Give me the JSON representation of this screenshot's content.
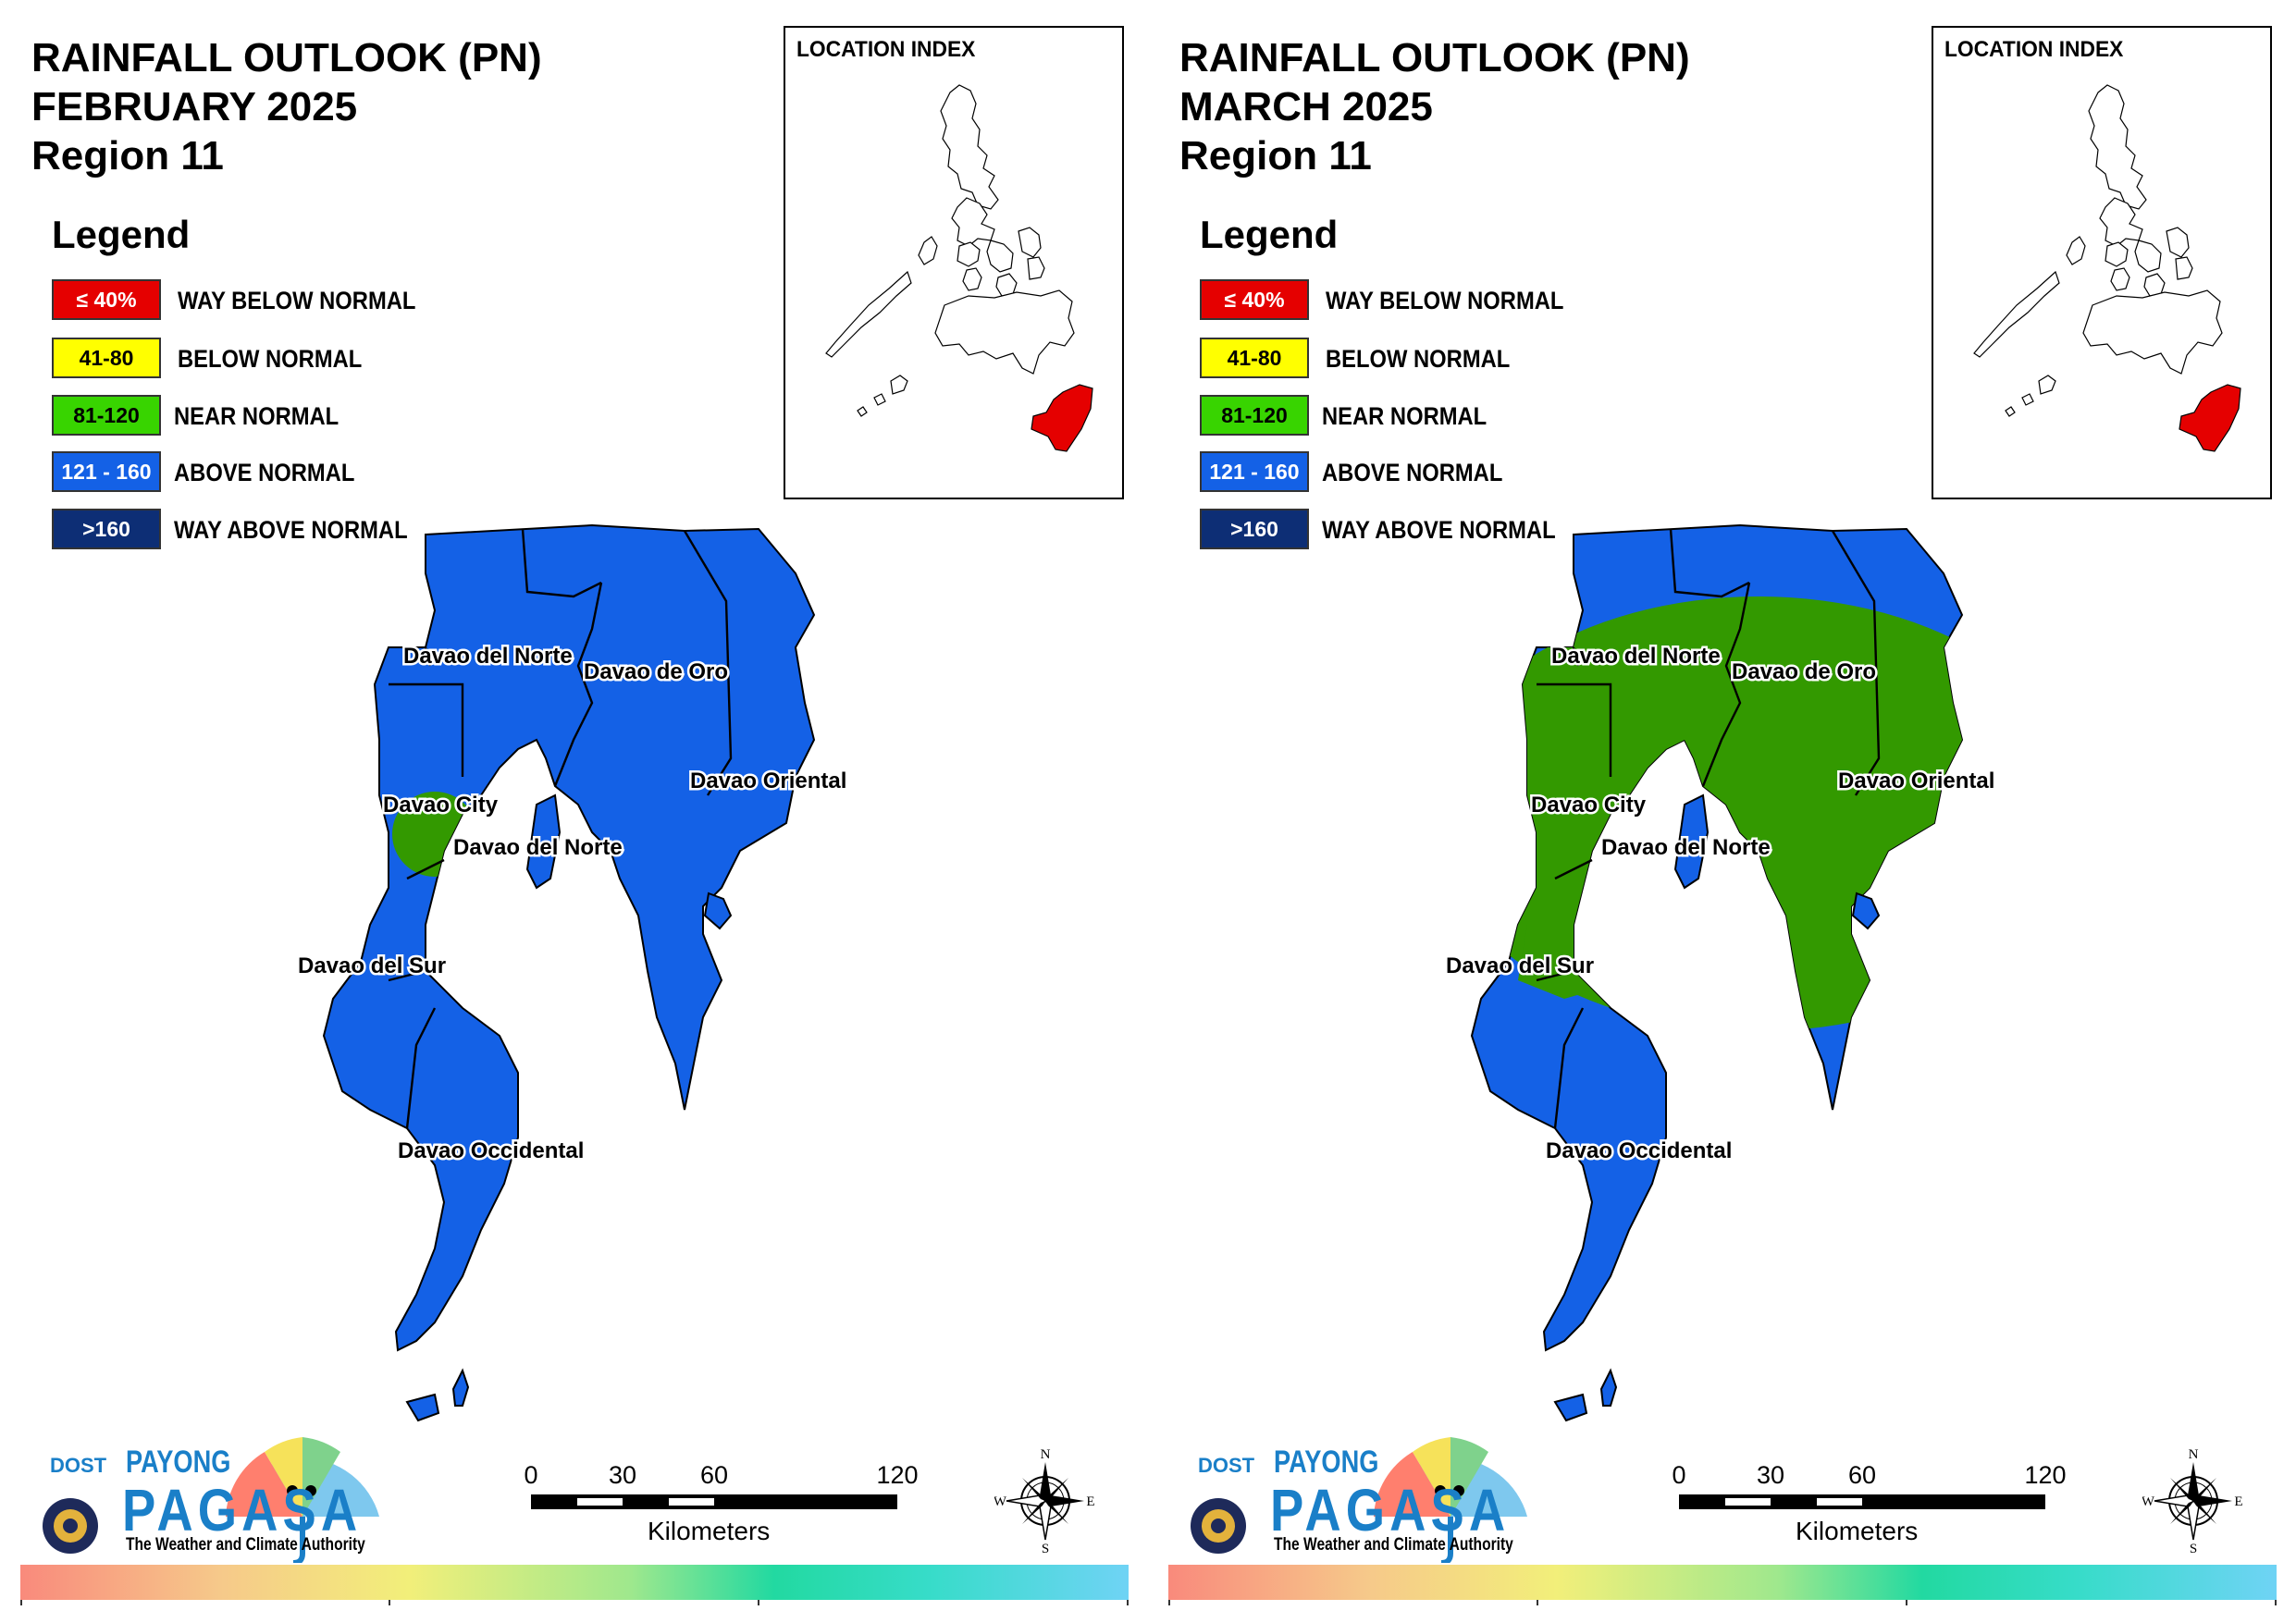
{
  "panels": [
    {
      "title_line1": "RAINFALL OUTLOOK (PN)",
      "title_line2": "FEBRUARY 2025",
      "title_line3": "Region 11",
      "near_normal_coverage": "Davao City area only"
    },
    {
      "title_line1": "RAINFALL OUTLOOK (PN)",
      "title_line2": "MARCH 2025",
      "title_line3": "Region 11",
      "near_normal_coverage": "central and western Davao Region"
    }
  ],
  "legend": {
    "title": "Legend",
    "items": [
      {
        "range": "≤ 40%",
        "label": "WAY BELOW NORMAL",
        "color": "#e50000",
        "text_color": "#ffffff"
      },
      {
        "range": "41-80",
        "label": "BELOW NORMAL",
        "color": "#ffff00",
        "text_color": "#000000"
      },
      {
        "range": "81-120",
        "label": "NEAR NORMAL",
        "color": "#38d400",
        "text_color": "#000000"
      },
      {
        "range": "121 - 160",
        "label": "ABOVE NORMAL",
        "color": "#1461e6",
        "text_color": "#ffffff"
      },
      {
        "range": ">160",
        "label": "WAY ABOVE NORMAL",
        "color": "#0d2e75",
        "text_color": "#ffffff"
      }
    ]
  },
  "inset": {
    "title": "LOCATION INDEX",
    "highlight_color": "#e50000"
  },
  "map": {
    "fill_above_normal": "#1461e6",
    "fill_near_normal": "#339900",
    "labels": [
      "Davao del Norte",
      "Davao de Oro",
      "Davao Oriental",
      "Davao City",
      "Davao del Norte",
      "Davao del Sur",
      "Davao Occidental"
    ]
  },
  "scale": {
    "ticks": [
      "0",
      "30",
      "60",
      "120"
    ],
    "unit": "Kilometers"
  },
  "compass": {
    "n": "N",
    "s": "S",
    "e": "E",
    "w": "W"
  },
  "logo": {
    "dost": "DOST",
    "payong": "PAYONG",
    "pagasa": "PAGASA",
    "tagline": "The Weather and Climate Authority"
  }
}
